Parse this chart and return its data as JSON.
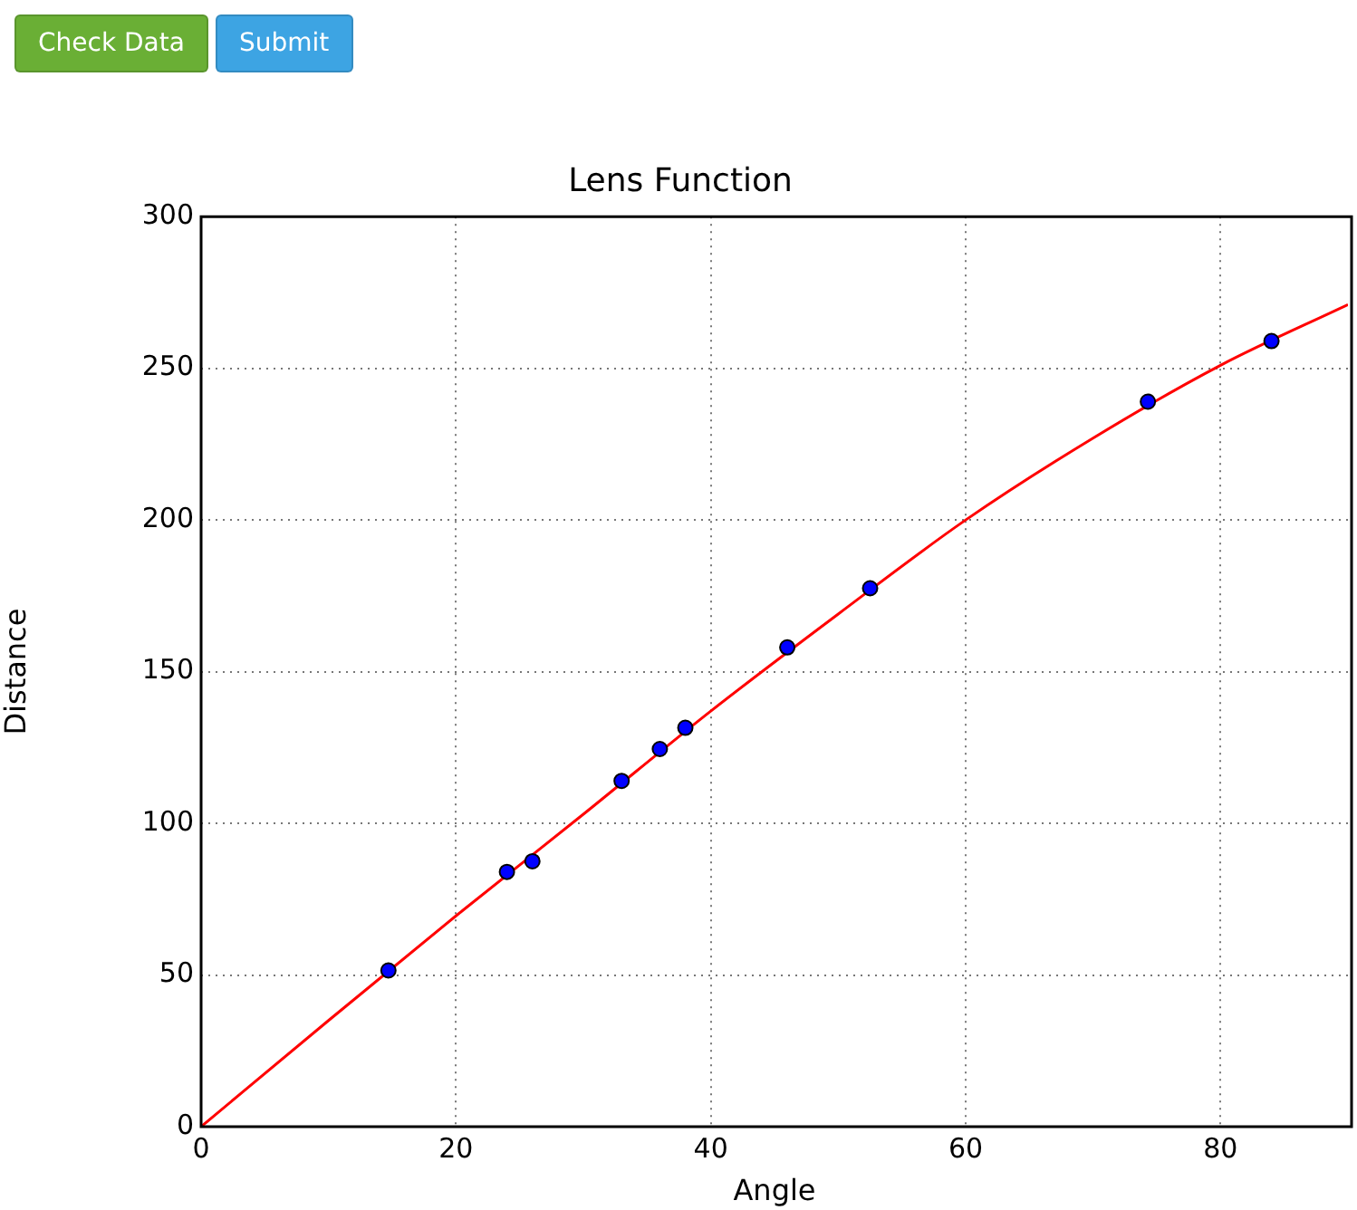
{
  "chart_data": {
    "type": "scatter",
    "title": "Lens Function",
    "xlabel": "Angle",
    "ylabel": "Distance",
    "xlim": [
      0,
      90
    ],
    "xticks": [
      0,
      20,
      40,
      60,
      80
    ],
    "ylim": [
      0,
      300
    ],
    "yticks": [
      0,
      50,
      100,
      150,
      200,
      250,
      300
    ],
    "grid": true,
    "legend": false,
    "annotations": [
      "Check Data",
      "Submit"
    ],
    "series": [
      {
        "color": "#0000ff",
        "marker": "circle",
        "x": [
          14.7,
          24,
          26,
          33,
          36,
          38,
          46,
          52.5,
          74.3,
          84
        ],
        "values": [
          51.5,
          84,
          87.5,
          114,
          124.5,
          131.5,
          158,
          177.5,
          239,
          259
        ]
      },
      {
        "type": "line",
        "color": "#ff0000",
        "line_style": "solid",
        "marker": "none",
        "x": [
          0,
          10,
          20,
          30,
          40,
          50,
          60,
          70,
          80,
          90
        ],
        "values": [
          0,
          35,
          69.5,
          103,
          137,
          169,
          200,
          227,
          251,
          271
        ]
      }
    ]
  }
}
